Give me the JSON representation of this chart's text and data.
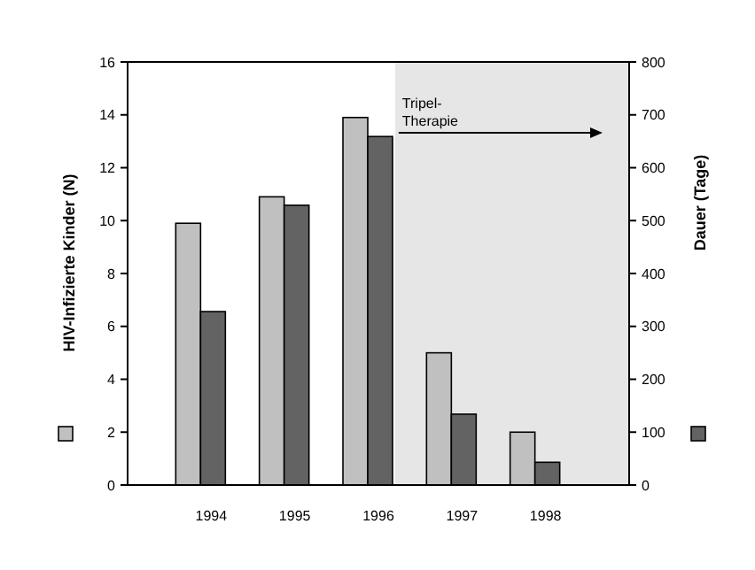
{
  "chart_data": {
    "type": "bar",
    "x": [
      1994,
      1995,
      1996,
      1997,
      1998
    ],
    "series": [
      {
        "color": "#c0c0c0",
        "values": [
          9.9,
          10.9,
          13.9,
          5.0,
          2.0
        ]
      },
      {
        "color": "#636363",
        "values": [
          328,
          529,
          659,
          134,
          43
        ],
        "axis": "y2"
      }
    ],
    "ylabel": "HIV-Infizierte Kinder (N)",
    "y2label": "Dauer (Tage)",
    "xlim": [
      1993,
      1999
    ],
    "xticks": [
      1994,
      1995,
      1996,
      1997,
      1998
    ],
    "ylim": [
      0,
      16
    ],
    "yticks": [
      0,
      2,
      4,
      6,
      8,
      10,
      12,
      14,
      16
    ],
    "y2lim": [
      0,
      800
    ],
    "y2ticks": [
      0,
      100,
      200,
      300,
      400,
      500,
      600,
      700,
      800
    ],
    "bands": [
      {
        "axis": "x",
        "from": 1996.2,
        "to": 1999,
        "label": "Tripel-Therapie",
        "color": "#e6e6e6"
      }
    ],
    "grid": false
  }
}
